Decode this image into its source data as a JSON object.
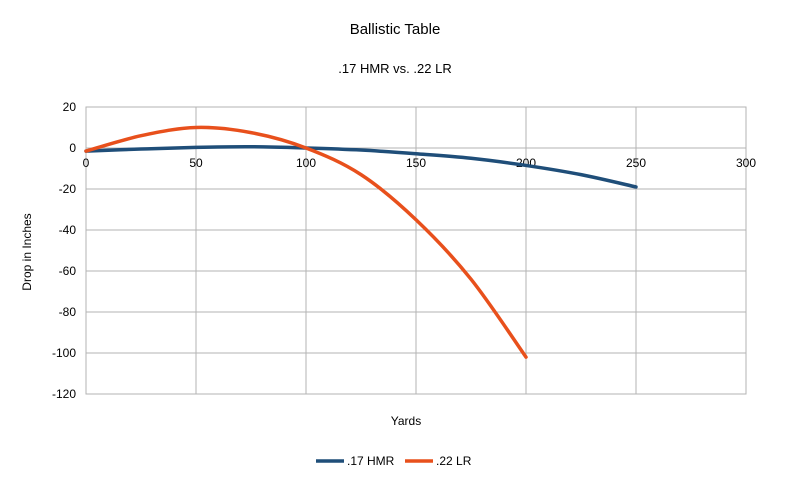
{
  "chart_data": {
    "type": "line",
    "title": "Ballistic Table",
    "subtitle": ".17 HMR vs. .22 LR",
    "xlabel": "Yards",
    "ylabel": "Drop in Inches",
    "xlim": [
      0,
      300
    ],
    "ylim": [
      -120,
      20
    ],
    "xticks": [
      0,
      50,
      100,
      150,
      200,
      250,
      300
    ],
    "yticks": [
      20,
      0,
      -20,
      -40,
      -60,
      -80,
      -100,
      -120
    ],
    "grid": true,
    "legend": "bottom-center",
    "series": [
      {
        "name": ".17 HMR",
        "color": "#1f4e79",
        "x": [
          0,
          25,
          50,
          75,
          100,
          125,
          150,
          175,
          200,
          225,
          250
        ],
        "y": [
          -1.5,
          -0.5,
          0.3,
          0.6,
          0.0,
          -1.0,
          -2.8,
          -5.0,
          -8.5,
          -13.0,
          -19.0
        ]
      },
      {
        "name": ".22 LR",
        "color": "#e8501c",
        "x": [
          0,
          25,
          50,
          75,
          100,
          125,
          150,
          175,
          200
        ],
        "y": [
          -1.5,
          6.0,
          10.0,
          7.5,
          0.0,
          -13.0,
          -35.0,
          -64.0,
          -102.0
        ]
      }
    ]
  }
}
